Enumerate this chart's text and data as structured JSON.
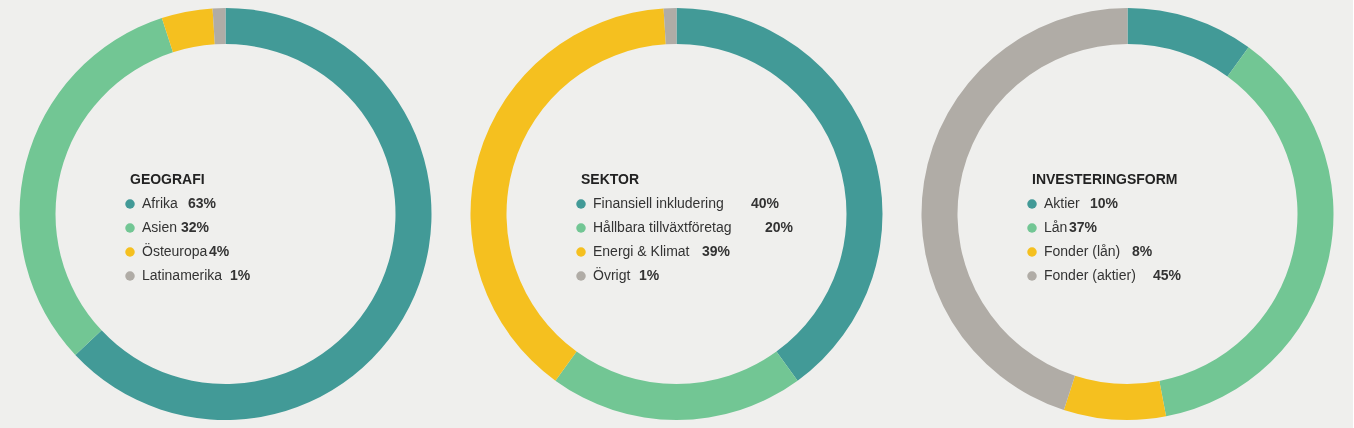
{
  "chart_data": [
    {
      "type": "donut",
      "title": "GEOGRAFI",
      "categories": [
        "Afrika",
        "Asien",
        "Östeuropa",
        "Latinamerika"
      ],
      "values": [
        63,
        32,
        4,
        1
      ],
      "value_labels": [
        "63%",
        "32%",
        "4%",
        "1%"
      ],
      "colors": [
        "#429a97",
        "#72c694",
        "#f5c01f",
        "#b0aca6"
      ],
      "legend": "center"
    },
    {
      "type": "donut",
      "title": "SEKTOR",
      "categories": [
        "Finansiell inkludering",
        "Hållbara tillväxtföretag",
        "Energi & Klimat",
        "Övrigt"
      ],
      "values": [
        40,
        20,
        39,
        1
      ],
      "value_labels": [
        "40%",
        "20%",
        "39%",
        "1%"
      ],
      "colors": [
        "#429a97",
        "#72c694",
        "#f5c01f",
        "#b0aca6"
      ],
      "legend": "center"
    },
    {
      "type": "donut",
      "title": "INVESTERINGSFORM",
      "categories": [
        "Aktier",
        "Lån",
        "Fonder (lån)",
        "Fonder (aktier)"
      ],
      "values": [
        10,
        37,
        8,
        45
      ],
      "value_labels": [
        "10%",
        "37%",
        "8%",
        "45%"
      ],
      "colors": [
        "#429a97",
        "#72c694",
        "#f5c01f",
        "#b0aca6"
      ],
      "legend": "center"
    }
  ]
}
